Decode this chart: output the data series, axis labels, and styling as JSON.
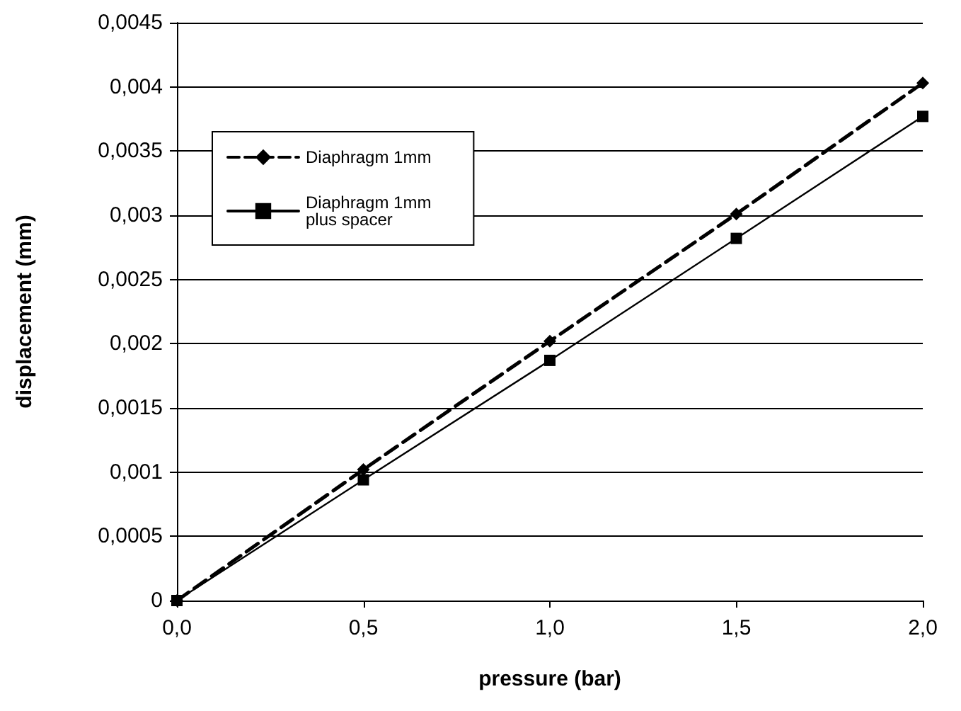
{
  "chart_data": {
    "type": "line",
    "xlabel": "pressure (bar)",
    "ylabel": "displacement (mm)",
    "x": [
      0,
      0.5,
      1,
      1.5,
      2
    ],
    "series": [
      {
        "name": "Diaphragm 1mm",
        "color": "#000000",
        "values": [
          0,
          0.00102,
          0.00202,
          0.00301,
          0.00403
        ],
        "marker": "diamond",
        "line_style": "dashed"
      },
      {
        "name": "Diaphragm 1mm\nplus spacer",
        "color": "#000000",
        "values": [
          0,
          0.00094,
          0.00187,
          0.00282,
          0.00377
        ],
        "marker": "square",
        "line_style": "solid"
      }
    ],
    "xlim": [
      0,
      2
    ],
    "xticks": [
      {
        "value": 0,
        "label": "0,0"
      },
      {
        "value": 0.5,
        "label": "0,5"
      },
      {
        "value": 1,
        "label": "1,0"
      },
      {
        "value": 1.5,
        "label": "1,5"
      },
      {
        "value": 2,
        "label": "2,0"
      }
    ],
    "ylim": [
      0,
      0.0045
    ],
    "yticks": [
      0,
      {
        "value": 0.0005,
        "label": "0,0005"
      },
      {
        "value": 0.001,
        "label": "0,001"
      },
      {
        "value": 0.0015,
        "label": "0,0015"
      },
      {
        "value": 0.002,
        "label": "0,002"
      },
      {
        "value": 0.0025,
        "label": "0,0025"
      },
      {
        "value": 0.003,
        "label": "0,003"
      },
      {
        "value": 0.0035,
        "label": "0,0035"
      },
      {
        "value": 0.004,
        "label": "0,004"
      },
      {
        "value": 0.0045,
        "label": "0,0045"
      }
    ],
    "grid": "y",
    "legend": "top left"
  }
}
